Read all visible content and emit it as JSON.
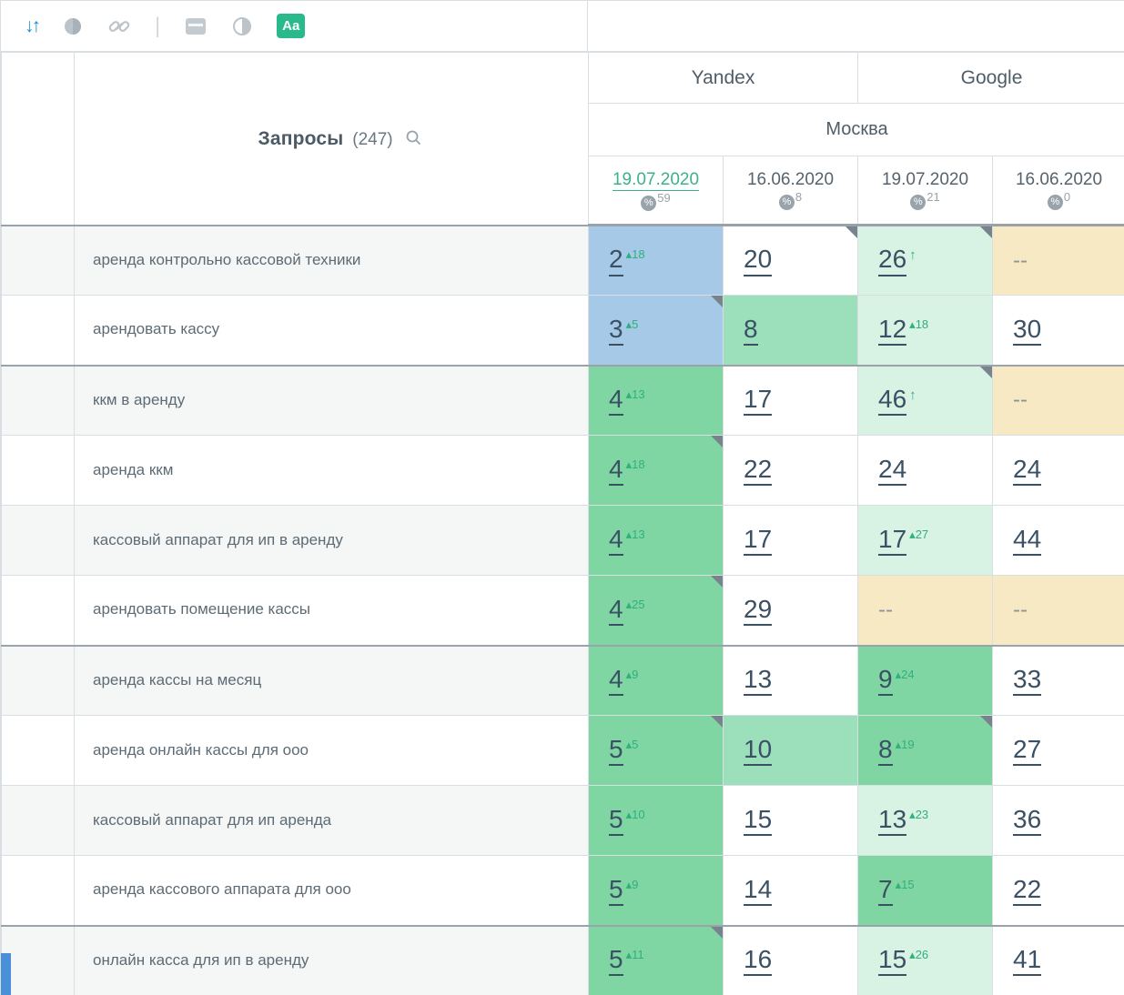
{
  "toolbar": {
    "sort_glyph": "↓↑",
    "separator": "|",
    "aa_label": "Aa"
  },
  "header": {
    "queries_label": "Запросы",
    "queries_count": "(247)",
    "engines": [
      "Yandex",
      "Google"
    ],
    "region": "Москва",
    "dates": [
      {
        "label": "19.07.2020",
        "percent": "59",
        "active": true
      },
      {
        "label": "16.06.2020",
        "percent": "8",
        "active": false
      },
      {
        "label": "19.07.2020",
        "percent": "21",
        "active": false
      },
      {
        "label": "16.06.2020",
        "percent": "0",
        "active": false
      }
    ]
  },
  "rows": [
    {
      "keyword": "аренда контрольно кассовой техники",
      "group_start": true,
      "cells": [
        {
          "v": "2",
          "chg": "18",
          "bg": "blue"
        },
        {
          "v": "20",
          "bg": "white",
          "corner": true
        },
        {
          "v": "26",
          "arrow": true,
          "bg": "pale",
          "corner": true
        },
        {
          "v": "--",
          "bg": "tan"
        }
      ]
    },
    {
      "keyword": "арендовать кассу",
      "cells": [
        {
          "v": "3",
          "chg": "5",
          "bg": "blue",
          "corner": true
        },
        {
          "v": "8",
          "bg": "mid"
        },
        {
          "v": "12",
          "chg": "18",
          "bg": "pale"
        },
        {
          "v": "30",
          "bg": "white"
        }
      ]
    },
    {
      "keyword": "ккм в аренду",
      "group_start": true,
      "cells": [
        {
          "v": "4",
          "chg": "13",
          "bg": "green"
        },
        {
          "v": "17",
          "bg": "white"
        },
        {
          "v": "46",
          "arrow": true,
          "bg": "pale",
          "corner": true
        },
        {
          "v": "--",
          "bg": "tan"
        }
      ]
    },
    {
      "keyword": "аренда ккм",
      "cells": [
        {
          "v": "4",
          "chg": "18",
          "bg": "green",
          "corner": true
        },
        {
          "v": "22",
          "bg": "white"
        },
        {
          "v": "24",
          "bg": "white"
        },
        {
          "v": "24",
          "bg": "white"
        }
      ]
    },
    {
      "keyword": "кассовый аппарат для ип в аренду",
      "cells": [
        {
          "v": "4",
          "chg": "13",
          "bg": "green"
        },
        {
          "v": "17",
          "bg": "white"
        },
        {
          "v": "17",
          "chg": "27",
          "bg": "pale"
        },
        {
          "v": "44",
          "bg": "white"
        }
      ]
    },
    {
      "keyword": "арендовать помещение кассы",
      "cells": [
        {
          "v": "4",
          "chg": "25",
          "bg": "green",
          "corner": true
        },
        {
          "v": "29",
          "bg": "white"
        },
        {
          "v": "--",
          "bg": "tan"
        },
        {
          "v": "--",
          "bg": "tan"
        }
      ]
    },
    {
      "keyword": "аренда кассы на месяц",
      "group_start": true,
      "cells": [
        {
          "v": "4",
          "chg": "9",
          "bg": "green"
        },
        {
          "v": "13",
          "bg": "white"
        },
        {
          "v": "9",
          "chg": "24",
          "bg": "green"
        },
        {
          "v": "33",
          "bg": "white"
        }
      ]
    },
    {
      "keyword": "аренда онлайн кассы для ооо",
      "cells": [
        {
          "v": "5",
          "chg": "5",
          "bg": "green",
          "corner": true
        },
        {
          "v": "10",
          "bg": "mid"
        },
        {
          "v": "8",
          "chg": "19",
          "bg": "green",
          "corner": true
        },
        {
          "v": "27",
          "bg": "white"
        }
      ]
    },
    {
      "keyword": "кассовый аппарат для ип аренда",
      "cells": [
        {
          "v": "5",
          "chg": "10",
          "bg": "green"
        },
        {
          "v": "15",
          "bg": "white"
        },
        {
          "v": "13",
          "chg": "23",
          "bg": "pale"
        },
        {
          "v": "36",
          "bg": "white"
        }
      ]
    },
    {
      "keyword": "аренда кассового аппарата для ооо",
      "cells": [
        {
          "v": "5",
          "chg": "9",
          "bg": "green"
        },
        {
          "v": "14",
          "bg": "white"
        },
        {
          "v": "7",
          "chg": "15",
          "bg": "green"
        },
        {
          "v": "22",
          "bg": "white"
        }
      ]
    },
    {
      "keyword": "онлайн касса для ип в аренду",
      "group_start": true,
      "cells": [
        {
          "v": "5",
          "chg": "11",
          "bg": "green",
          "corner": true
        },
        {
          "v": "16",
          "bg": "white"
        },
        {
          "v": "15",
          "chg": "26",
          "bg": "pale"
        },
        {
          "v": "41",
          "bg": "white"
        }
      ]
    }
  ],
  "colors": {
    "accent": "#2ab98a",
    "activeDate": "#3bb289",
    "cellBlue": "#a6c9e8",
    "cellGreen": "#80d6a3",
    "cellGreenMid": "#9be0ba",
    "cellGreenPale": "#d8f2e4",
    "cellTan": "#f7e9c4",
    "change": "#2fb07c",
    "number": "#3a5064"
  }
}
